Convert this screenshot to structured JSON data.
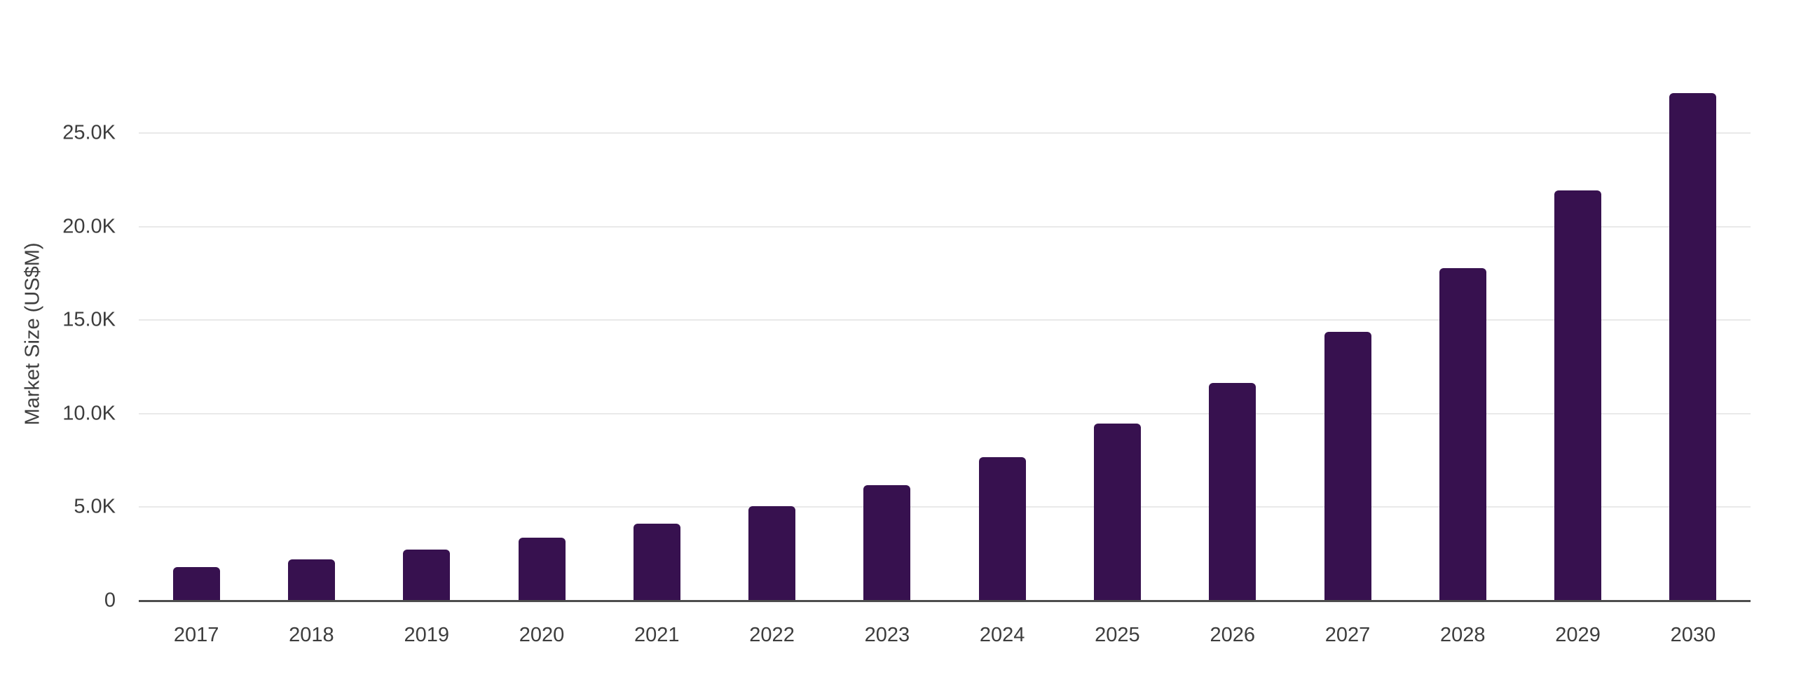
{
  "chart_data": {
    "type": "bar",
    "ylabel": "Market Size (US$M)",
    "categories": [
      "2017",
      "2018",
      "2019",
      "2020",
      "2021",
      "2022",
      "2023",
      "2024",
      "2025",
      "2026",
      "2027",
      "2028",
      "2029",
      "2030"
    ],
    "values": [
      1800,
      2210,
      2730,
      3370,
      4120,
      5050,
      6180,
      7670,
      9470,
      11640,
      14370,
      17790,
      21930,
      27140
    ],
    "y_ticks": [
      {
        "value": 0,
        "label": "0"
      },
      {
        "value": 5000,
        "label": "5.0K"
      },
      {
        "value": 10000,
        "label": "10.0K"
      },
      {
        "value": 15000,
        "label": "15.0K"
      },
      {
        "value": 20000,
        "label": "20.0K"
      },
      {
        "value": 25000,
        "label": "25.0K"
      }
    ],
    "ylim": [
      0,
      28000
    ],
    "grid": true,
    "legend": false,
    "colors": {
      "bar": "#37114F",
      "gridline": "#e9e9e9",
      "axis_line": "#4d4d4d",
      "tick_label": "#3d3d3d",
      "axis_title": "#404040",
      "background": "#ffffff"
    }
  }
}
